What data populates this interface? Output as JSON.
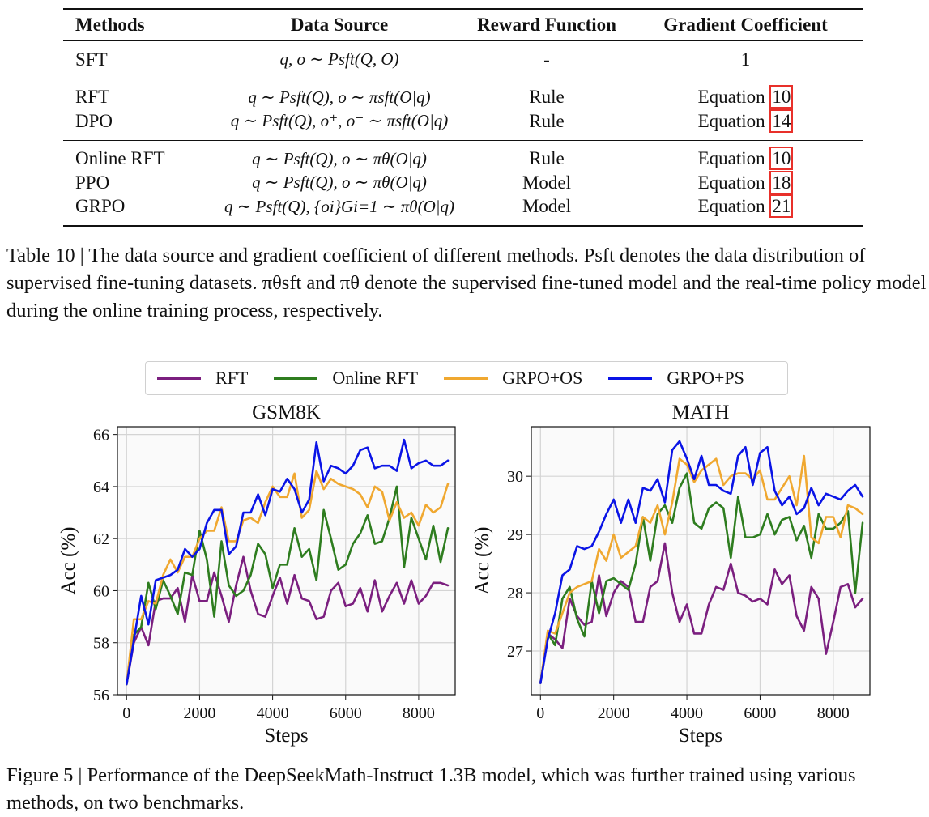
{
  "table": {
    "headers": [
      "Methods",
      "Data Source",
      "Reward Function",
      "Gradient Coefficient"
    ],
    "groups": [
      [
        {
          "method": "SFT",
          "source": "q, o ∼ Psft(Q, O)",
          "reward": "-",
          "grad": "1",
          "eq": ""
        }
      ],
      [
        {
          "method": "RFT",
          "source": "q ∼ Psft(Q), o ∼ πsft(O|q)",
          "reward": "Rule",
          "grad": "Equation",
          "eq": "10"
        },
        {
          "method": "DPO",
          "source": "q ∼ Psft(Q), o⁺, o⁻ ∼ πsft(O|q)",
          "reward": "Rule",
          "grad": "Equation",
          "eq": "14"
        }
      ],
      [
        {
          "method": "Online RFT",
          "source": "q ∼ Psft(Q), o ∼ πθ(O|q)",
          "reward": "Rule",
          "grad": "Equation",
          "eq": "10"
        },
        {
          "method": "PPO",
          "source": "q ∼ Psft(Q), o ∼ πθ(O|q)",
          "reward": "Model",
          "grad": "Equation",
          "eq": "18"
        },
        {
          "method": "GRPO",
          "source": "q ∼ Psft(Q), {oi}Gi=1 ∼ πθ(O|q)",
          "reward": "Model",
          "grad": "Equation",
          "eq": "21"
        }
      ]
    ],
    "caption": "Table 10 | The data source and gradient coefficient of different methods. Psft denotes the data distribution of supervised fine-tuning datasets. πθsft and πθ denote the supervised fine-tuned model and the real-time policy model during the online training process, respectively."
  },
  "figure": {
    "caption": "Figure 5 | Performance of the DeepSeekMath-Instruct 1.3B model, which was further trained using various methods, on two benchmarks."
  },
  "colors": {
    "RFT": "#7b1f7f",
    "Online RFT": "#2e7d1f",
    "GRPO+OS": "#f0a830",
    "GRPO+PS": "#0a14e6"
  },
  "chart_data": [
    {
      "type": "line",
      "title": "GSM8K",
      "xlabel": "Steps",
      "ylabel": "Acc (%)",
      "xlim": [
        -250,
        9000
      ],
      "ylim": [
        56,
        66.3
      ],
      "xticks": [
        0,
        2000,
        4000,
        6000,
        8000
      ],
      "yticks": [
        56,
        58,
        60,
        62,
        64,
        66
      ],
      "grid": true,
      "legend": "top (shared)",
      "x": [
        0,
        200,
        400,
        600,
        800,
        1000,
        1200,
        1400,
        1600,
        1800,
        2000,
        2200,
        2400,
        2600,
        2800,
        3000,
        3200,
        3400,
        3600,
        3800,
        4000,
        4200,
        4400,
        4600,
        4800,
        5000,
        5200,
        5400,
        5600,
        5800,
        6000,
        6200,
        6400,
        6600,
        6800,
        7000,
        7200,
        7400,
        7600,
        7800,
        8000,
        8200,
        8400,
        8600,
        8800
      ],
      "series": [
        {
          "name": "RFT",
          "values": [
            56.4,
            58.0,
            58.6,
            57.9,
            59.6,
            59.7,
            59.7,
            60.1,
            58.8,
            60.6,
            59.6,
            59.6,
            60.7,
            59.8,
            58.8,
            60.2,
            61.3,
            60.0,
            59.1,
            59.0,
            59.8,
            60.5,
            59.5,
            60.6,
            59.7,
            59.6,
            58.9,
            59.0,
            60.0,
            60.3,
            59.4,
            59.5,
            60.1,
            59.2,
            60.4,
            59.2,
            59.8,
            60.3,
            59.5,
            60.4,
            59.5,
            59.8,
            60.3,
            60.3,
            60.2
          ]
        },
        {
          "name": "Online RFT",
          "values": [
            56.4,
            58.3,
            58.6,
            60.3,
            59.3,
            60.4,
            59.8,
            59.1,
            60.7,
            60.6,
            62.3,
            61.2,
            59.0,
            61.9,
            60.2,
            59.8,
            60.0,
            60.6,
            61.8,
            61.4,
            60.1,
            61.0,
            61.0,
            62.4,
            61.3,
            61.6,
            60.4,
            63.1,
            62.0,
            60.8,
            61.0,
            61.8,
            62.2,
            62.9,
            61.8,
            61.9,
            62.8,
            64.0,
            60.9,
            62.8,
            62.0,
            61.2,
            62.5,
            61.1,
            62.4
          ]
        },
        {
          "name": "GRPO+OS",
          "values": [
            56.4,
            58.9,
            58.9,
            59.6,
            59.5,
            60.6,
            61.2,
            60.7,
            61.3,
            61.3,
            62.0,
            62.3,
            62.3,
            63.2,
            61.9,
            61.9,
            62.7,
            62.8,
            62.6,
            63.4,
            64.0,
            63.6,
            63.6,
            64.5,
            62.8,
            63.1,
            64.6,
            63.9,
            64.3,
            64.1,
            64.0,
            63.9,
            63.7,
            63.2,
            64.0,
            63.8,
            62.7,
            63.4,
            62.8,
            63.0,
            62.5,
            63.3,
            63.0,
            63.2,
            64.1
          ]
        },
        {
          "name": "GRPO+PS",
          "values": [
            56.4,
            58.1,
            59.8,
            58.7,
            60.4,
            60.5,
            60.6,
            60.8,
            61.6,
            61.3,
            61.6,
            62.6,
            63.1,
            63.1,
            61.4,
            61.7,
            63.0,
            63.0,
            63.7,
            62.9,
            63.9,
            63.8,
            64.3,
            63.9,
            63.0,
            63.5,
            65.7,
            64.2,
            64.8,
            64.7,
            64.5,
            64.8,
            65.4,
            65.5,
            64.7,
            64.8,
            64.8,
            64.6,
            65.8,
            64.7,
            64.9,
            65.0,
            64.8,
            64.8,
            65.0
          ]
        }
      ]
    },
    {
      "type": "line",
      "title": "MATH",
      "xlabel": "Steps",
      "ylabel": "Acc (%)",
      "xlim": [
        -250,
        9000
      ],
      "ylim": [
        26.25,
        30.85
      ],
      "xticks": [
        0,
        2000,
        4000,
        6000,
        8000
      ],
      "yticks": [
        27,
        28,
        29,
        30
      ],
      "grid": true,
      "legend": "top (shared)",
      "x": [
        0,
        200,
        400,
        600,
        800,
        1000,
        1200,
        1400,
        1600,
        1800,
        2000,
        2200,
        2400,
        2600,
        2800,
        3000,
        3200,
        3400,
        3600,
        3800,
        4000,
        4200,
        4400,
        4600,
        4800,
        5000,
        5200,
        5400,
        5600,
        5800,
        6000,
        6200,
        6400,
        6600,
        6800,
        7000,
        7200,
        7400,
        7600,
        7800,
        8000,
        8200,
        8400,
        8600,
        8800
      ],
      "series": [
        {
          "name": "RFT",
          "values": [
            26.45,
            27.3,
            27.2,
            27.05,
            27.9,
            27.6,
            27.45,
            27.5,
            28.3,
            27.6,
            28.0,
            28.2,
            28.1,
            27.5,
            27.5,
            28.1,
            28.2,
            28.85,
            28.0,
            27.5,
            27.8,
            27.3,
            27.3,
            27.8,
            28.1,
            28.05,
            28.5,
            28.0,
            27.95,
            27.85,
            27.9,
            27.8,
            28.4,
            28.15,
            28.3,
            27.6,
            27.35,
            28.1,
            27.9,
            26.95,
            27.5,
            28.1,
            28.15,
            27.75,
            27.9
          ]
        },
        {
          "name": "Online RFT",
          "values": [
            26.45,
            27.3,
            27.1,
            27.9,
            28.1,
            27.55,
            27.25,
            28.2,
            27.65,
            28.2,
            28.25,
            28.15,
            28.05,
            28.5,
            29.3,
            28.55,
            29.35,
            29.5,
            29.2,
            29.8,
            30.05,
            29.2,
            29.1,
            29.45,
            29.55,
            29.45,
            28.6,
            29.65,
            28.95,
            28.95,
            29.0,
            29.35,
            29.0,
            29.25,
            29.3,
            28.9,
            29.15,
            28.6,
            29.35,
            29.1,
            29.1,
            29.2,
            29.4,
            28.0,
            29.2
          ]
        },
        {
          "name": "GRPO+OS",
          "values": [
            26.45,
            27.35,
            27.3,
            27.65,
            28.0,
            28.1,
            28.15,
            28.2,
            28.75,
            28.55,
            29.0,
            28.6,
            28.7,
            28.8,
            29.3,
            29.2,
            29.5,
            29.0,
            29.55,
            30.3,
            30.2,
            29.9,
            30.1,
            30.2,
            30.3,
            29.85,
            30.0,
            30.05,
            30.05,
            29.95,
            30.1,
            29.6,
            29.6,
            29.8,
            30.0,
            29.5,
            30.35,
            28.95,
            28.85,
            29.3,
            29.3,
            28.95,
            29.5,
            29.45,
            29.35
          ]
        },
        {
          "name": "GRPO+PS",
          "values": [
            26.45,
            27.2,
            27.65,
            28.3,
            28.4,
            28.8,
            28.75,
            28.8,
            29.05,
            29.35,
            29.6,
            29.2,
            29.6,
            29.2,
            29.8,
            29.75,
            29.95,
            29.55,
            30.45,
            30.6,
            30.3,
            29.95,
            30.35,
            29.85,
            29.85,
            29.75,
            29.7,
            30.35,
            30.5,
            29.85,
            30.4,
            30.5,
            29.75,
            29.5,
            29.65,
            29.35,
            29.45,
            29.8,
            29.5,
            29.7,
            29.65,
            29.6,
            29.75,
            29.85,
            29.65
          ]
        }
      ]
    }
  ]
}
